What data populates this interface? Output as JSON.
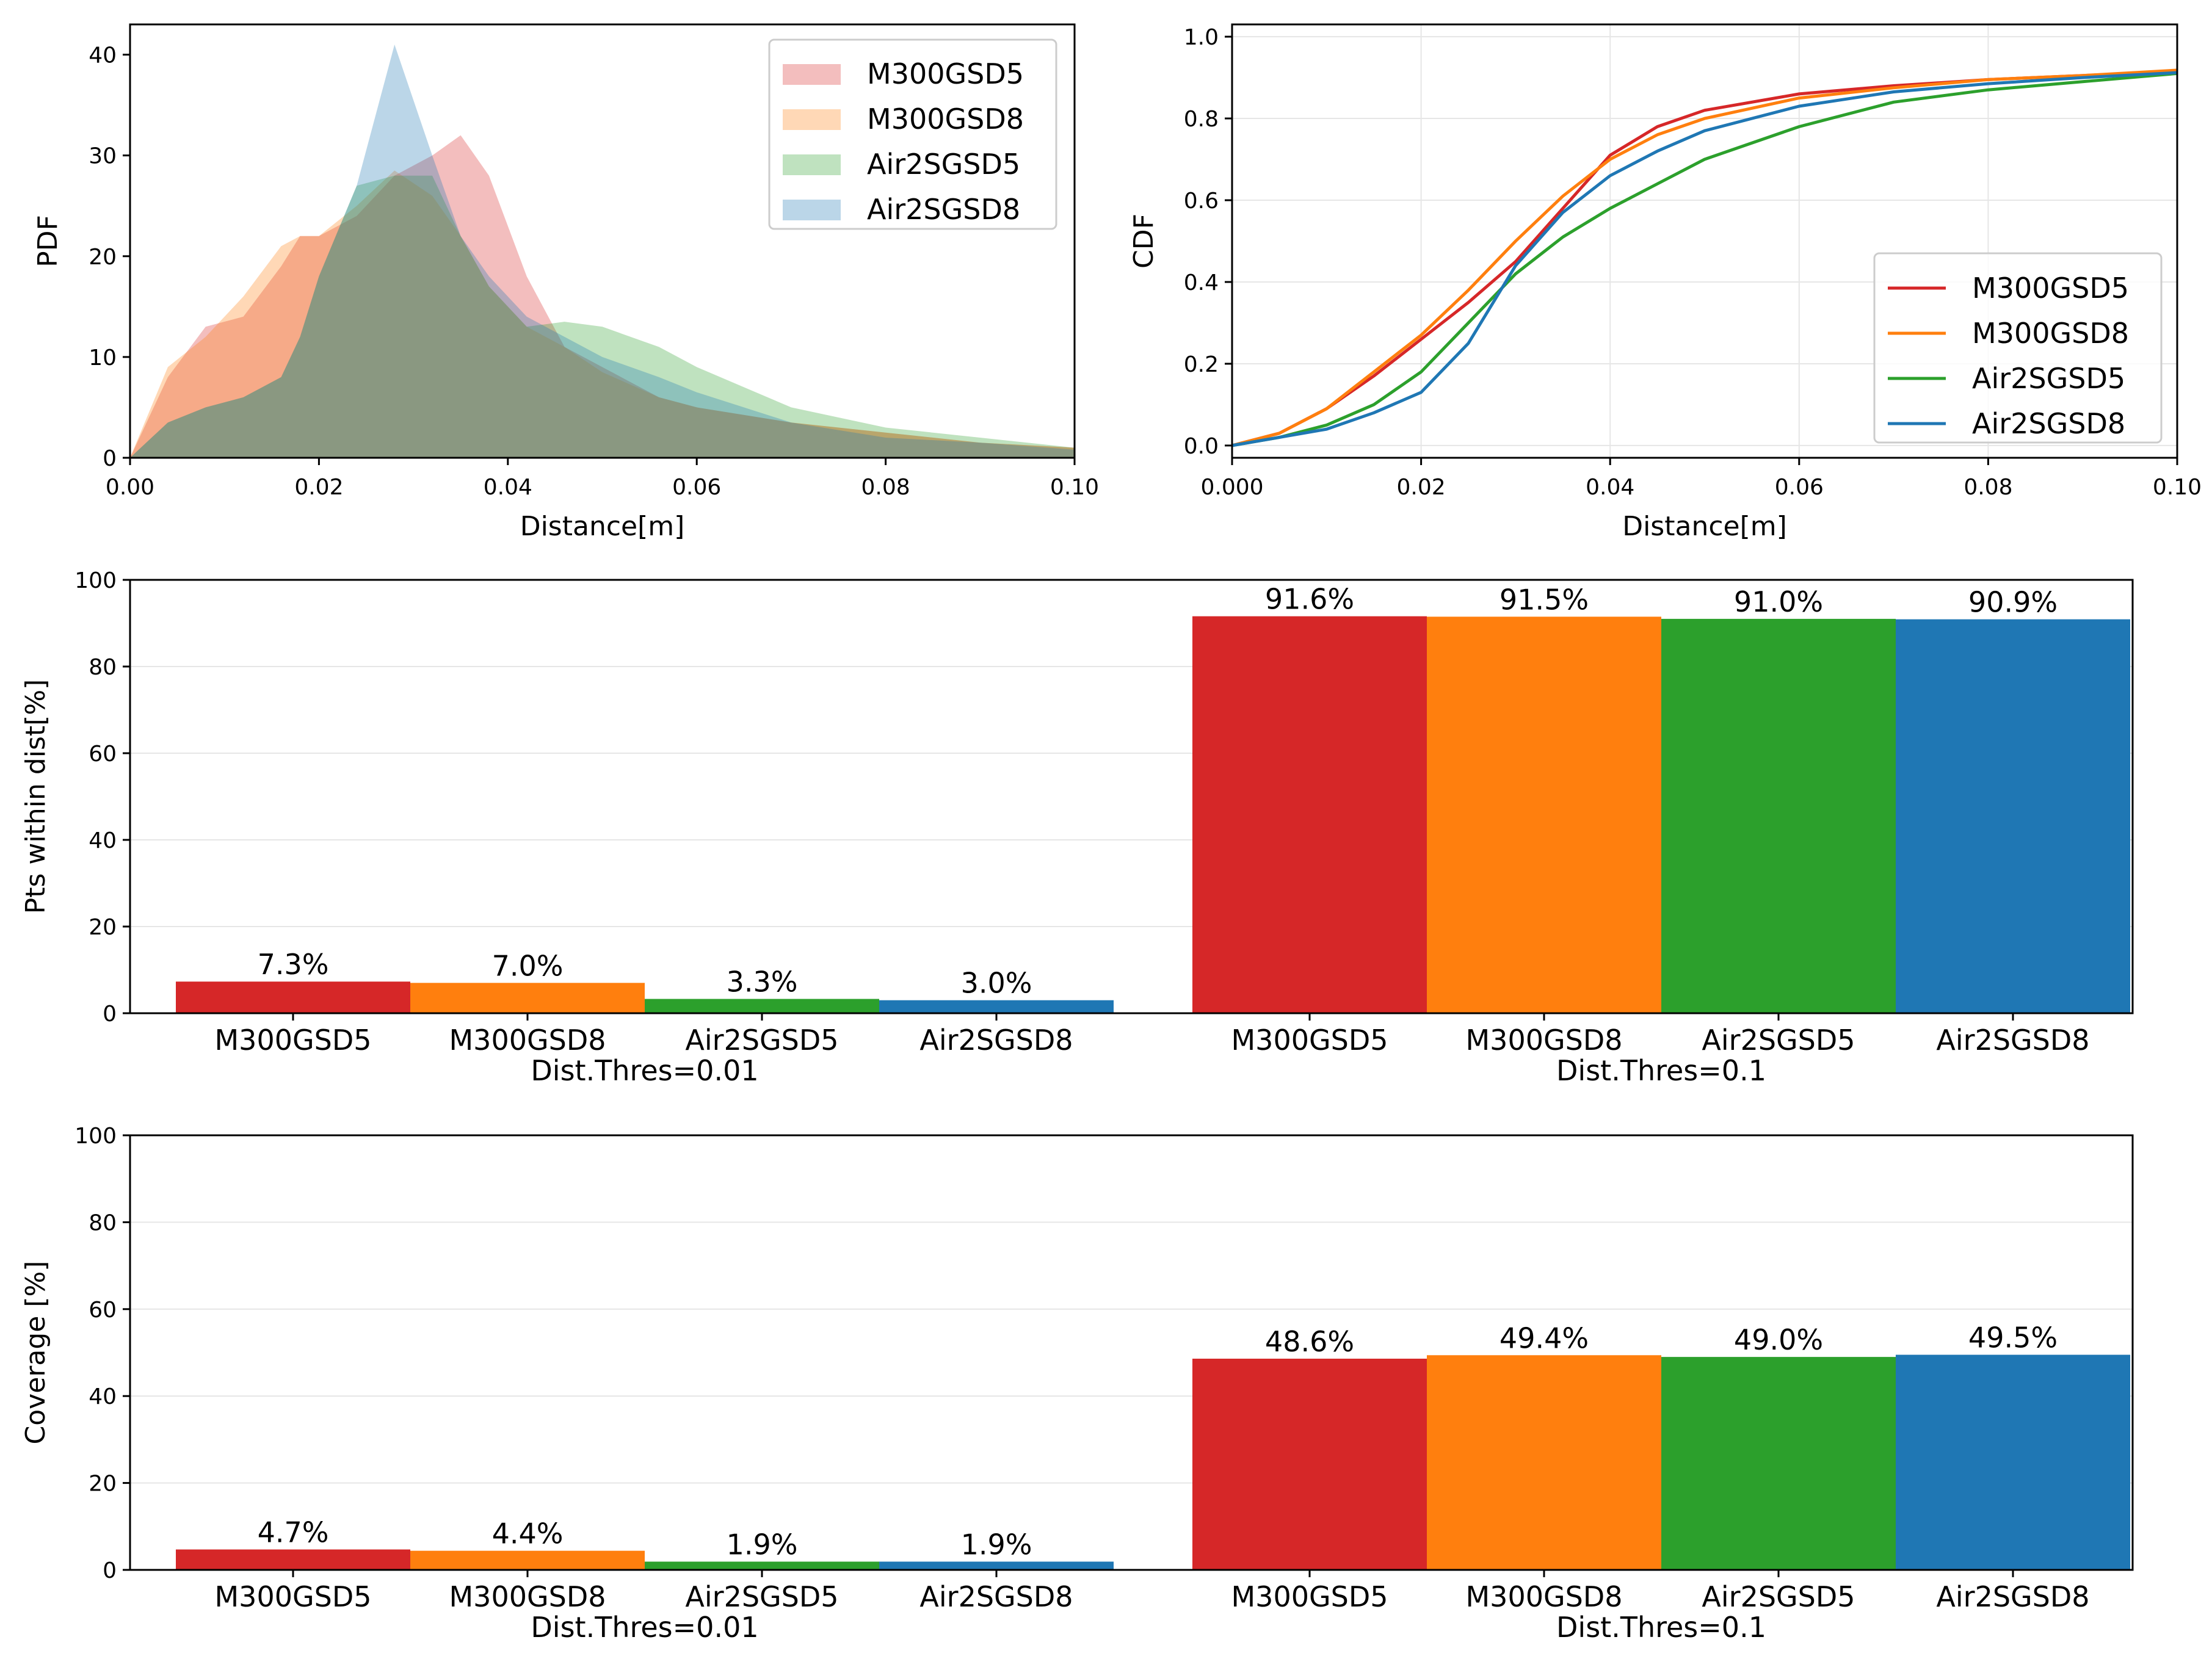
{
  "series_names": [
    "M300GSD5",
    "M300GSD8",
    "Air2SGSD5",
    "Air2SGSD8"
  ],
  "colors": {
    "M300GSD5": "#d62728",
    "M300GSD8": "#ff7f0e",
    "Air2SGSD5": "#2ca02c",
    "Air2SGSD8": "#1f77b4"
  },
  "chart_data": [
    {
      "id": "pdf",
      "type": "area",
      "xlabel": "Distance[m]",
      "ylabel": "PDF",
      "xlim": [
        0,
        0.1
      ],
      "ylim": [
        0,
        43
      ],
      "xticks": [
        "0.00",
        "0.02",
        "0.04",
        "0.06",
        "0.08",
        "0.10"
      ],
      "yticks": [
        "0",
        "10",
        "20",
        "30",
        "40"
      ],
      "grid": false,
      "legend": "top-right",
      "x": [
        0,
        0.004,
        0.008,
        0.012,
        0.016,
        0.018,
        0.02,
        0.024,
        0.028,
        0.032,
        0.035,
        0.038,
        0.042,
        0.046,
        0.05,
        0.056,
        0.06,
        0.07,
        0.08,
        0.09,
        0.1
      ],
      "series": [
        {
          "name": "M300GSD5",
          "values": [
            0,
            8,
            13,
            14,
            19,
            22,
            22,
            24,
            28,
            30,
            32,
            28,
            18,
            11,
            9,
            6,
            5,
            3.5,
            2.5,
            1.5,
            1
          ]
        },
        {
          "name": "M300GSD8",
          "values": [
            0,
            9,
            12,
            16,
            21,
            22,
            22,
            25,
            28.5,
            26,
            22,
            17,
            13,
            11,
            8.5,
            6,
            5,
            3.5,
            2.5,
            1.5,
            1
          ]
        },
        {
          "name": "Air2SGSD5",
          "values": [
            0,
            3.5,
            5,
            6,
            8,
            12,
            18,
            27,
            28,
            28,
            22,
            17,
            13,
            13.5,
            13,
            11,
            9,
            5,
            3,
            2,
            1
          ]
        },
        {
          "name": "Air2SGSD8",
          "values": [
            0,
            3.5,
            5,
            6,
            8,
            12,
            18,
            27,
            41,
            30,
            22,
            18,
            14,
            12,
            10,
            8,
            6.5,
            3.5,
            2,
            1.5,
            0.8
          ]
        }
      ]
    },
    {
      "id": "cdf",
      "type": "line",
      "xlabel": "Distance[m]",
      "ylabel": "CDF",
      "xlim": [
        0,
        0.1
      ],
      "ylim": [
        -0.03,
        1.03
      ],
      "xticks": [
        "0.000",
        "0.02",
        "0.04",
        "0.06",
        "0.08",
        "0.10"
      ],
      "yticks": [
        "0.0",
        "0.2",
        "0.4",
        "0.6",
        "0.8",
        "1.0"
      ],
      "grid": true,
      "legend": "bottom-right",
      "x": [
        0,
        0.005,
        0.01,
        0.015,
        0.02,
        0.025,
        0.03,
        0.035,
        0.04,
        0.045,
        0.05,
        0.06,
        0.07,
        0.08,
        0.09,
        0.1
      ],
      "series": [
        {
          "name": "M300GSD5",
          "values": [
            0,
            0.03,
            0.09,
            0.17,
            0.26,
            0.35,
            0.45,
            0.58,
            0.71,
            0.78,
            0.82,
            0.86,
            0.88,
            0.895,
            0.905,
            0.915
          ]
        },
        {
          "name": "M300GSD8",
          "values": [
            0,
            0.03,
            0.09,
            0.18,
            0.27,
            0.38,
            0.5,
            0.61,
            0.7,
            0.76,
            0.8,
            0.85,
            0.875,
            0.895,
            0.905,
            0.918
          ]
        },
        {
          "name": "Air2SGSD5",
          "values": [
            0,
            0.02,
            0.05,
            0.1,
            0.18,
            0.3,
            0.42,
            0.51,
            0.58,
            0.64,
            0.7,
            0.78,
            0.84,
            0.87,
            0.89,
            0.91
          ]
        },
        {
          "name": "Air2SGSD8",
          "values": [
            0,
            0.02,
            0.04,
            0.08,
            0.13,
            0.25,
            0.44,
            0.57,
            0.66,
            0.72,
            0.77,
            0.83,
            0.865,
            0.885,
            0.9,
            0.912
          ]
        }
      ]
    },
    {
      "id": "pts",
      "type": "bar",
      "ylabel": "Pts within dist[%]",
      "ylim": [
        0,
        100
      ],
      "yticks": [
        "0",
        "20",
        "40",
        "60",
        "80",
        "100"
      ],
      "grid": true,
      "groups": [
        {
          "name": "Dist.Thres=0.01",
          "values": [
            7.3,
            7.0,
            3.3,
            3.0
          ],
          "labels": [
            "7.3%",
            "7.0%",
            "3.3%",
            "3.0%"
          ]
        },
        {
          "name": "Dist.Thres=0.1",
          "values": [
            91.6,
            91.5,
            91.0,
            90.9
          ],
          "labels": [
            "91.6%",
            "91.5%",
            "91.0%",
            "90.9%"
          ]
        }
      ]
    },
    {
      "id": "cov",
      "type": "bar",
      "ylabel": "Coverage [%]",
      "ylim": [
        0,
        100
      ],
      "yticks": [
        "0",
        "20",
        "40",
        "60",
        "80",
        "100"
      ],
      "grid": true,
      "groups": [
        {
          "name": "Dist.Thres=0.01",
          "values": [
            4.7,
            4.4,
            1.9,
            1.9
          ],
          "labels": [
            "4.7%",
            "4.4%",
            "1.9%",
            "1.9%"
          ]
        },
        {
          "name": "Dist.Thres=0.1",
          "values": [
            48.6,
            49.4,
            49.0,
            49.5
          ],
          "labels": [
            "48.6%",
            "49.4%",
            "49.0%",
            "49.5%"
          ]
        }
      ]
    }
  ]
}
